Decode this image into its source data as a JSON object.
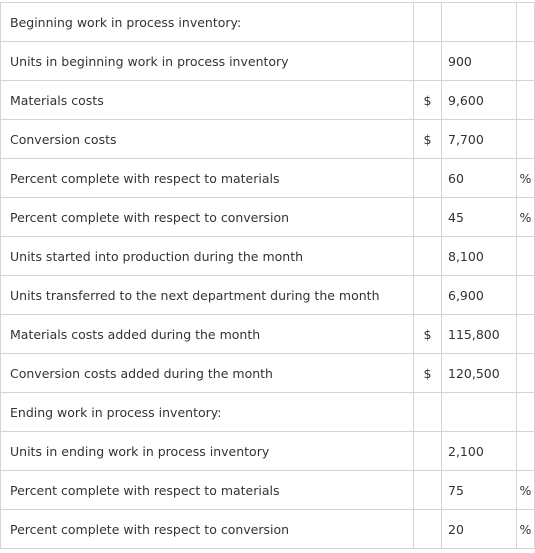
{
  "table": {
    "rows": [
      {
        "label": "Beginning work in process inventory:"
      },
      {
        "label": "Units in beginning work in process inventory",
        "value": "900"
      },
      {
        "label": "Materials costs",
        "currency": "$",
        "value": "9,600"
      },
      {
        "label": "Conversion costs",
        "currency": "$",
        "value": "7,700"
      },
      {
        "label": "Percent complete with respect to materials",
        "value": "60",
        "unit": "%"
      },
      {
        "label": "Percent complete with respect to conversion",
        "value": "45",
        "unit": "%"
      },
      {
        "label": "Units started into production during the month",
        "value": "8,100"
      },
      {
        "label": "Units transferred to the next department during the month",
        "value": "6,900"
      },
      {
        "label": "Materials costs added during the month",
        "currency": "$",
        "value": "115,800"
      },
      {
        "label": "Conversion costs added during the month",
        "currency": "$",
        "value": "120,500"
      },
      {
        "label": "Ending work in process inventory:"
      },
      {
        "label": "Units in ending work in process inventory",
        "value": "2,100"
      },
      {
        "label": "Percent complete with respect to materials",
        "value": "75",
        "unit": "%"
      },
      {
        "label": "Percent complete with respect to conversion",
        "value": "20",
        "unit": "%"
      }
    ]
  }
}
